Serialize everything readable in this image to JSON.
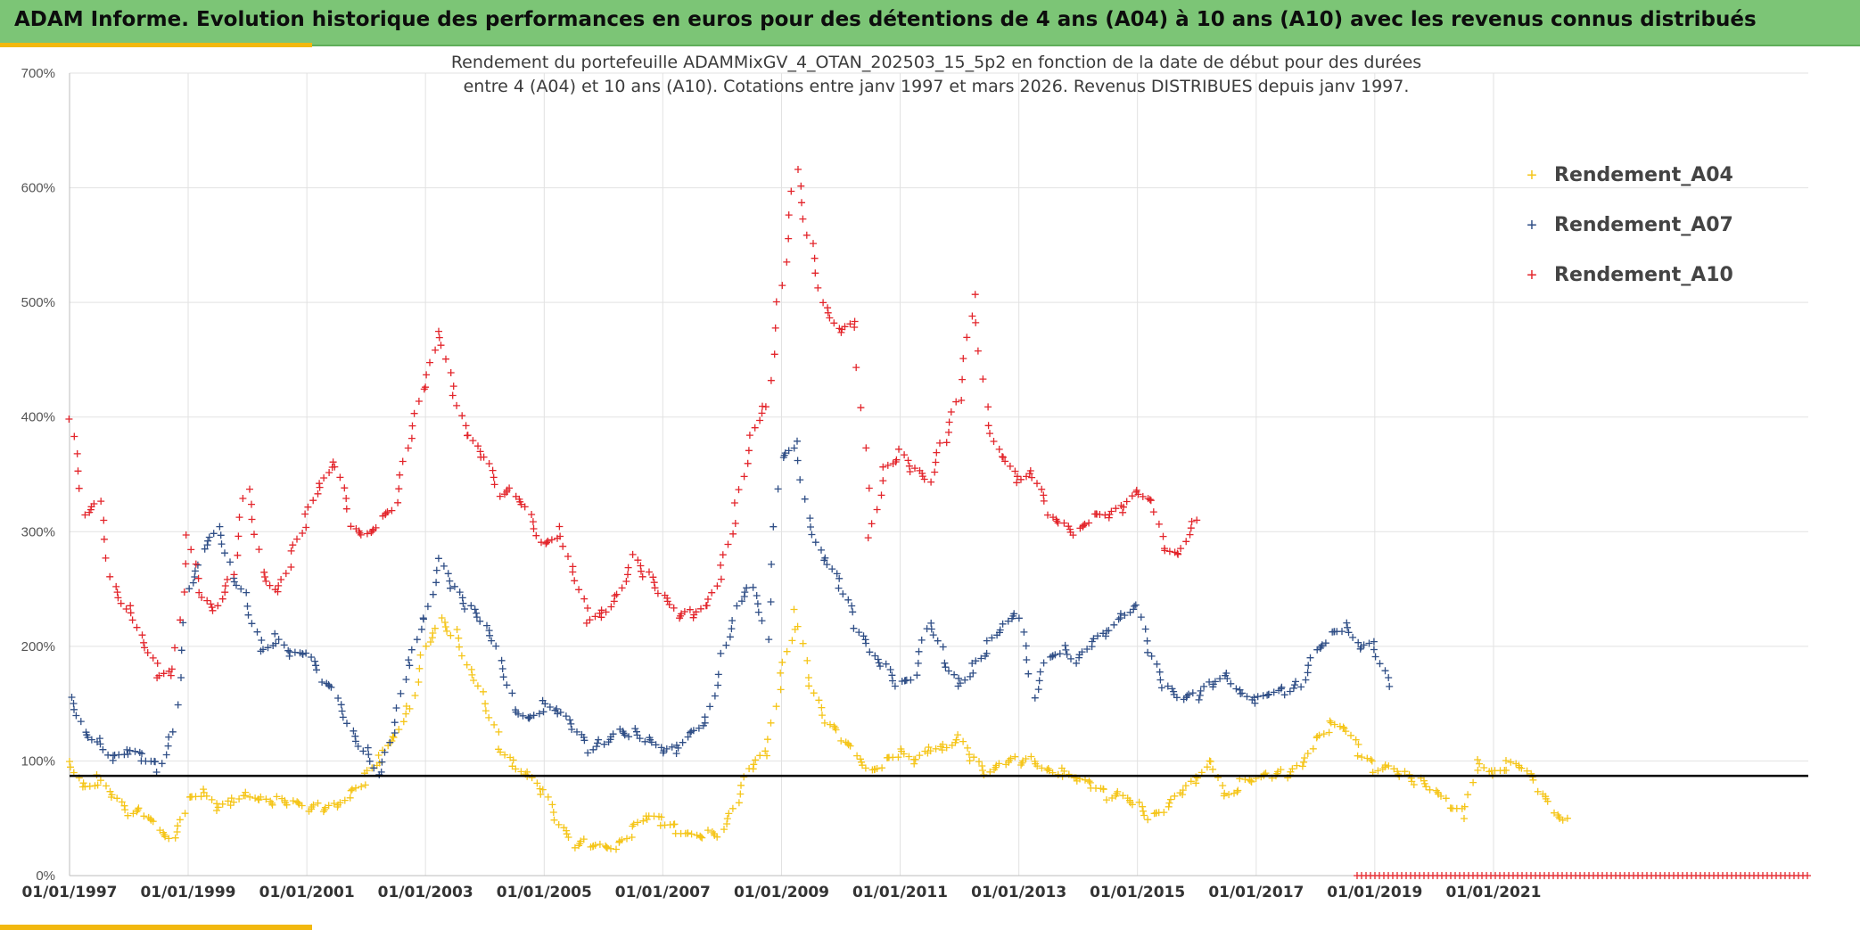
{
  "header": {
    "title": "ADAM Informe. Evolution historique des performances en euros pour des détentions de 4 ans (A04) à 10 ans (A10) avec les revenus connus distribués"
  },
  "colors": {
    "header_bg": "#7cc576",
    "accent": "#f2b80e",
    "A04": "#f5c518",
    "A07": "#2f4e86",
    "A10": "#e3252b",
    "reference_line": "#000000"
  },
  "chart_data": {
    "type": "scatter",
    "title_lines": [
      "Rendement du portefeuille ADAMMixGV_4_OTAN_202503_15_5p2  en fonction de la date de début pour des durées",
      "entre 4 (A04) et 10 ans (A10). Cotations entre janv 1997 et mars 2026. Revenus DISTRIBUES depuis janv 1997."
    ],
    "xlabel": "",
    "ylabel": "",
    "x_range": [
      "1997-01-01",
      "2023-01-01"
    ],
    "ylim": [
      0,
      700
    ],
    "y_ticks": [
      "0%",
      "100%",
      "200%",
      "300%",
      "400%",
      "500%",
      "600%",
      "700%"
    ],
    "x_tick_labels": [
      "01/01/1997",
      "01/01/1999",
      "01/01/2001",
      "01/01/2003",
      "01/01/2005",
      "01/01/2007",
      "01/01/2009",
      "01/01/2011",
      "01/01/2013",
      "01/01/2015",
      "01/01/2017",
      "01/01/2019",
      "01/01/2021"
    ],
    "grid": true,
    "legend_position": "top-right",
    "reference_line": 87,
    "series": [
      {
        "name": "Rendement_A04",
        "x": [
          "1997-01-01",
          "1997-04-01",
          "1997-07-01",
          "1997-10-01",
          "1998-01-01",
          "1998-04-01",
          "1998-07-01",
          "1998-10-01",
          "1999-01-01",
          "1999-04-01",
          "1999-07-01",
          "1999-10-01",
          "2000-01-01",
          "2000-04-01",
          "2000-07-01",
          "2000-10-01",
          "2001-01-01",
          "2001-04-01",
          "2001-07-01",
          "2001-10-01",
          "2002-01-01",
          "2002-04-01",
          "2002-07-01",
          "2002-10-01",
          "2003-01-01",
          "2003-04-01",
          "2003-07-01",
          "2003-10-01",
          "2004-01-01",
          "2004-04-01",
          "2004-07-01",
          "2004-10-01",
          "2005-01-01",
          "2005-04-01",
          "2005-07-01",
          "2005-10-01",
          "2006-01-01",
          "2006-04-01",
          "2006-07-01",
          "2006-10-01",
          "2007-01-01",
          "2007-04-01",
          "2007-07-01",
          "2007-10-01",
          "2008-01-01",
          "2008-04-01",
          "2008-07-01",
          "2008-10-01",
          "2009-01-01",
          "2009-04-01",
          "2009-07-01",
          "2009-10-01",
          "2010-01-01",
          "2010-04-01",
          "2010-07-01",
          "2010-10-01",
          "2011-01-01",
          "2011-04-01",
          "2011-07-01",
          "2011-10-01",
          "2012-01-01",
          "2012-04-01",
          "2012-07-01",
          "2012-10-01",
          "2013-01-01",
          "2013-04-01",
          "2013-07-01",
          "2013-10-01",
          "2014-01-01",
          "2014-04-01",
          "2014-07-01",
          "2014-10-01",
          "2015-01-01",
          "2015-04-01",
          "2015-07-01",
          "2015-10-01",
          "2016-01-01",
          "2016-04-01",
          "2016-07-01",
          "2016-10-01",
          "2017-01-01",
          "2017-04-01",
          "2017-07-01",
          "2017-10-01",
          "2018-01-01",
          "2018-04-01",
          "2018-07-01",
          "2018-10-01",
          "2019-01-01",
          "2019-04-01",
          "2019-07-01",
          "2019-10-01",
          "2020-01-01",
          "2020-04-01",
          "2020-07-01",
          "2020-10-01",
          "2021-01-01",
          "2021-04-01",
          "2021-07-01",
          "2021-10-01",
          "2022-01-01",
          "2022-04-01"
        ],
        "y": [
          105,
          80,
          85,
          65,
          50,
          55,
          45,
          35,
          65,
          70,
          55,
          65,
          75,
          70,
          65,
          60,
          55,
          60,
          65,
          75,
          85,
          100,
          120,
          150,
          205,
          225,
          210,
          175,
          150,
          115,
          100,
          90,
          70,
          40,
          25,
          30,
          30,
          28,
          38,
          48,
          45,
          42,
          40,
          38,
          35,
          60,
          95,
          110,
          180,
          230,
          160,
          130,
          120,
          110,
          95,
          100,
          105,
          95,
          110,
          115,
          125,
          100,
          85,
          95,
          100,
          105,
          95,
          90,
          80,
          75,
          70,
          75,
          65,
          50,
          55,
          70,
          85,
          105,
          70,
          80,
          80,
          85,
          90,
          100,
          120,
          130,
          125,
          105,
          95,
          100,
          90,
          80,
          70,
          60,
          55,
          105,
          90,
          95,
          90,
          75,
          60,
          50
        ]
      },
      {
        "name": "Rendement_A07",
        "x": [
          "1997-01-01",
          "1997-04-01",
          "1997-07-01",
          "1997-10-01",
          "1998-01-01",
          "1998-04-01",
          "1998-07-01",
          "1998-10-01",
          "1999-01-01",
          "1999-04-01",
          "1999-07-01",
          "1999-10-01",
          "2000-01-01",
          "2000-04-01",
          "2000-07-01",
          "2000-10-01",
          "2001-01-01",
          "2001-04-01",
          "2001-07-01",
          "2001-10-01",
          "2002-01-01",
          "2002-04-01",
          "2002-07-01",
          "2002-10-01",
          "2003-01-01",
          "2003-04-01",
          "2003-07-01",
          "2003-10-01",
          "2004-01-01",
          "2004-04-01",
          "2004-07-01",
          "2004-10-01",
          "2005-01-01",
          "2005-04-01",
          "2005-07-01",
          "2005-10-01",
          "2006-01-01",
          "2006-04-01",
          "2006-07-01",
          "2006-10-01",
          "2007-01-01",
          "2007-04-01",
          "2007-07-01",
          "2007-10-01",
          "2008-01-01",
          "2008-04-01",
          "2008-07-01",
          "2008-10-01",
          "2009-01-01",
          "2009-04-01",
          "2009-07-01",
          "2009-10-01",
          "2010-01-01",
          "2010-04-01",
          "2010-07-01",
          "2010-10-01",
          "2011-01-01",
          "2011-04-01",
          "2011-07-01",
          "2011-10-01",
          "2012-01-01",
          "2012-04-01",
          "2012-07-01",
          "2012-10-01",
          "2013-01-01",
          "2013-04-01",
          "2013-07-01",
          "2013-10-01",
          "2014-01-01",
          "2014-04-01",
          "2014-07-01",
          "2014-10-01",
          "2015-01-01",
          "2015-04-01",
          "2015-07-01",
          "2015-10-01",
          "2016-01-01",
          "2016-04-01",
          "2016-07-01",
          "2016-10-01",
          "2017-01-01",
          "2017-04-01",
          "2017-07-01",
          "2017-10-01",
          "2018-01-01",
          "2018-04-01",
          "2018-07-01",
          "2018-10-01",
          "2019-01-01",
          "2019-04-01"
        ],
        "y": [
          160,
          130,
          120,
          100,
          105,
          100,
          95,
          130,
          250,
          280,
          300,
          260,
          240,
          200,
          210,
          190,
          190,
          170,
          160,
          130,
          110,
          85,
          130,
          190,
          230,
          280,
          250,
          230,
          215,
          190,
          150,
          140,
          150,
          140,
          125,
          110,
          120,
          130,
          125,
          115,
          105,
          110,
          130,
          140,
          190,
          230,
          250,
          210,
          370,
          380,
          300,
          270,
          250,
          220,
          200,
          185,
          165,
          170,
          220,
          190,
          170,
          185,
          200,
          215,
          225,
          160,
          195,
          200,
          185,
          200,
          210,
          230,
          240,
          190,
          160,
          150,
          155,
          170,
          180,
          160,
          150,
          155,
          160,
          170,
          200,
          210,
          215,
          195,
          200,
          165
        ]
      },
      {
        "name": "Rendement_A10",
        "x": [
          "1997-01-01",
          "1997-04-01",
          "1997-07-01",
          "1997-10-01",
          "1998-01-01",
          "1998-04-01",
          "1998-07-01",
          "1998-10-01",
          "1999-01-01",
          "1999-04-01",
          "1999-07-01",
          "1999-10-01",
          "2000-01-01",
          "2000-04-01",
          "2000-07-01",
          "2000-10-01",
          "2001-01-01",
          "2001-04-01",
          "2001-07-01",
          "2001-10-01",
          "2002-01-01",
          "2002-04-01",
          "2002-07-01",
          "2002-10-01",
          "2003-01-01",
          "2003-04-01",
          "2003-07-01",
          "2003-10-01",
          "2004-01-01",
          "2004-04-01",
          "2004-07-01",
          "2004-10-01",
          "2005-01-01",
          "2005-04-01",
          "2005-07-01",
          "2005-10-01",
          "2006-01-01",
          "2006-04-01",
          "2006-07-01",
          "2006-10-01",
          "2007-01-01",
          "2007-04-01",
          "2007-07-01",
          "2007-10-01",
          "2008-01-01",
          "2008-04-01",
          "2008-07-01",
          "2008-10-01",
          "2009-01-01",
          "2009-04-01",
          "2009-07-01",
          "2009-10-01",
          "2010-01-01",
          "2010-04-01",
          "2010-07-01",
          "2010-10-01",
          "2011-01-01",
          "2011-04-01",
          "2011-07-01",
          "2011-10-01",
          "2012-01-01",
          "2012-04-01",
          "2012-07-01",
          "2012-10-01",
          "2013-01-01",
          "2013-04-01",
          "2013-07-01",
          "2013-10-01",
          "2014-01-01",
          "2014-04-01",
          "2014-07-01",
          "2014-10-01",
          "2015-01-01",
          "2015-04-01",
          "2015-07-01",
          "2015-10-01",
          "2016-01-01"
        ],
        "y": [
          400,
          320,
          330,
          250,
          230,
          200,
          175,
          180,
          300,
          240,
          230,
          260,
          340,
          270,
          250,
          280,
          310,
          340,
          360,
          310,
          300,
          310,
          320,
          380,
          430,
          480,
          420,
          380,
          360,
          330,
          335,
          320,
          290,
          300,
          260,
          220,
          230,
          250,
          280,
          260,
          240,
          225,
          230,
          240,
          270,
          320,
          380,
          410,
          520,
          620,
          550,
          490,
          470,
          480,
          300,
          360,
          370,
          350,
          340,
          380,
          420,
          510,
          390,
          360,
          340,
          350,
          320,
          310,
          300,
          310,
          310,
          320,
          340,
          330,
          280,
          280,
          310
        ]
      }
    ]
  },
  "legend": {
    "items": [
      {
        "label": "Rendement_A04"
      },
      {
        "label": "Rendement_A07"
      },
      {
        "label": "Rendement_A10"
      }
    ]
  }
}
